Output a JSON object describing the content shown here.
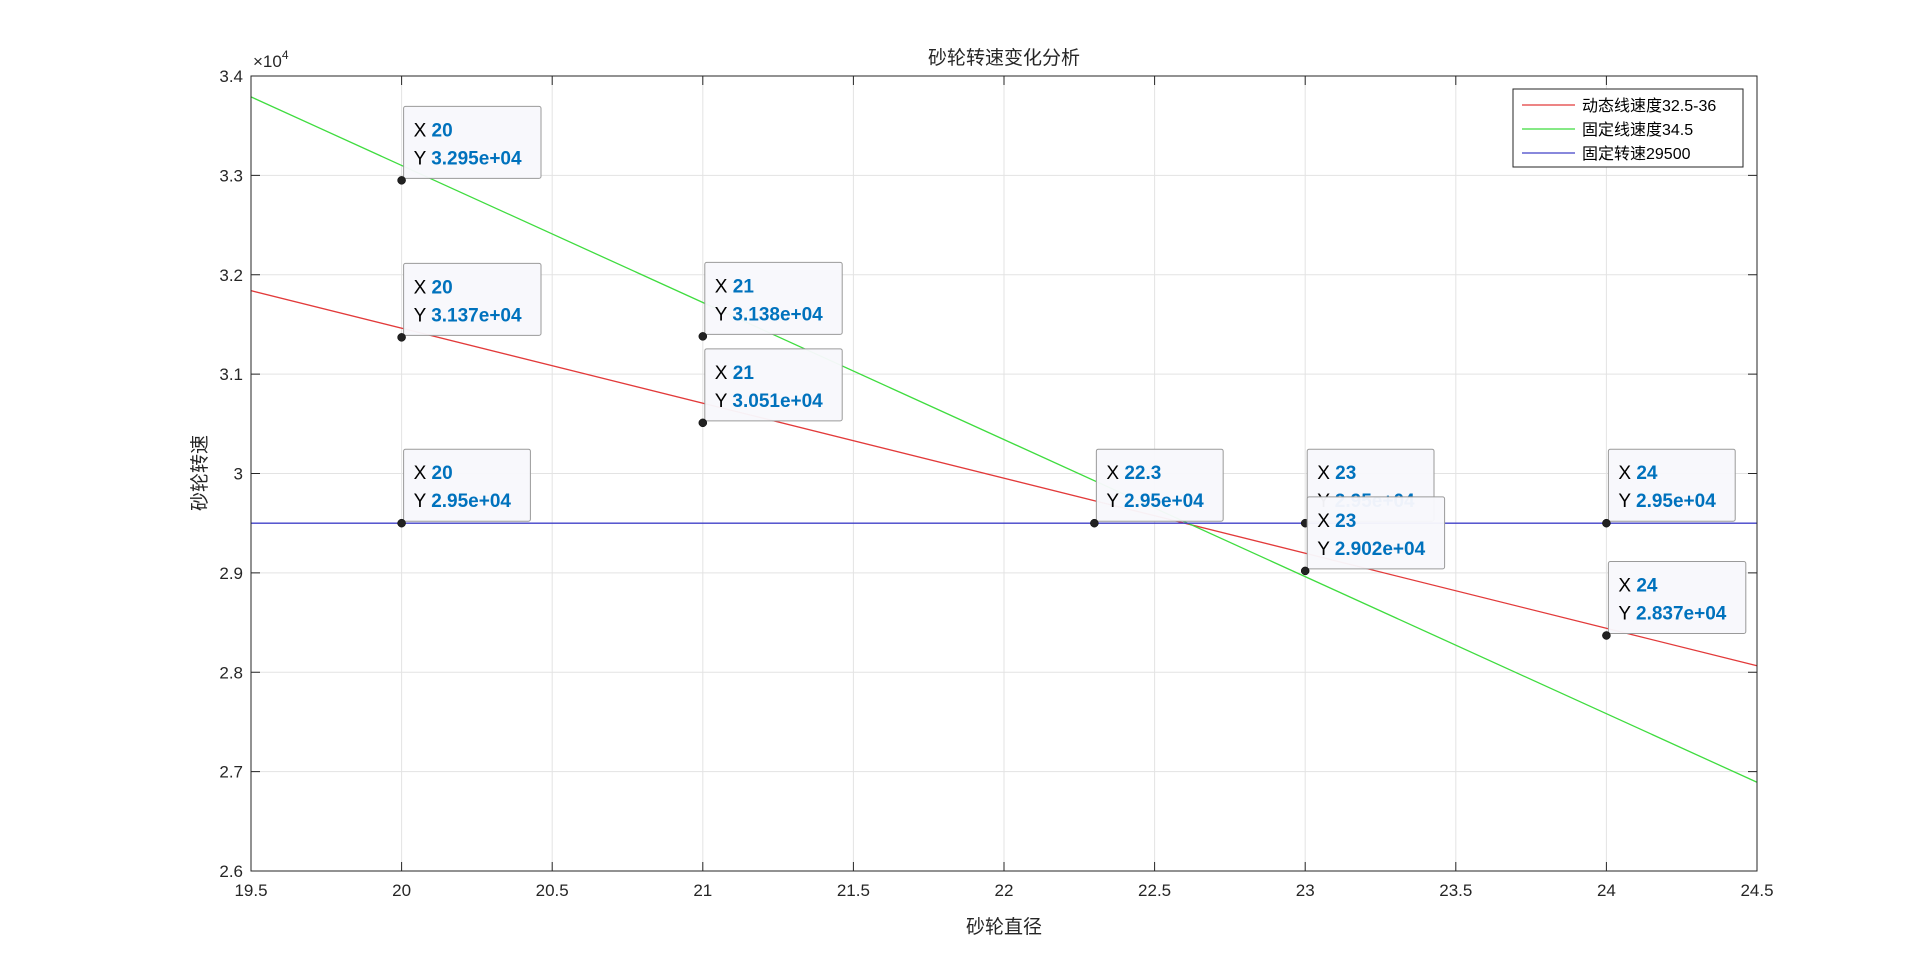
{
  "chart_data": {
    "type": "line",
    "title": "砂轮转速变化分析",
    "xlabel": "砂轮直径",
    "ylabel": "砂轮转速",
    "exponent_label": "×10",
    "exponent_power": "4",
    "xlim": [
      19.5,
      24.5
    ],
    "ylim": [
      26000,
      34000
    ],
    "xticks": [
      "19.5",
      "20",
      "20.5",
      "21",
      "21.5",
      "22",
      "22.5",
      "23",
      "23.5",
      "24",
      "24.5"
    ],
    "xtick_values": [
      19.5,
      20,
      20.5,
      21,
      21.5,
      22,
      22.5,
      23,
      23.5,
      24,
      24.5
    ],
    "yticks": [
      "2.6",
      "2.7",
      "2.8",
      "2.9",
      "3",
      "3.1",
      "3.2",
      "3.3",
      "3.4"
    ],
    "ytick_values": [
      26000,
      27000,
      28000,
      29000,
      30000,
      31000,
      32000,
      33000,
      34000
    ],
    "grid": true,
    "legend_position": "top-right",
    "series": [
      {
        "name": "动态线速度32.5-36",
        "color": "#e23a3a",
        "x": [
          19.5,
          24.5
        ],
        "y": [
          31840,
          28065
        ]
      },
      {
        "name": "固定线速度34.5",
        "color": "#3fdc3f",
        "x": [
          19.5,
          24.5
        ],
        "y": [
          33790,
          26893
        ]
      },
      {
        "name": "固定转速29500",
        "color": "#4040c8",
        "x": [
          19.5,
          24.5
        ],
        "y": [
          29500,
          29500
        ]
      }
    ],
    "datatips": [
      {
        "x": 20,
        "y": 32950,
        "x_label": "20",
        "y_label": "3.295e+04"
      },
      {
        "x": 20,
        "y": 31370,
        "x_label": "20",
        "y_label": "3.137e+04"
      },
      {
        "x": 20,
        "y": 29500,
        "x_label": "20",
        "y_label": "2.95e+04"
      },
      {
        "x": 21,
        "y": 31380,
        "x_label": "21",
        "y_label": "3.138e+04"
      },
      {
        "x": 21,
        "y": 30510,
        "x_label": "21",
        "y_label": "3.051e+04"
      },
      {
        "x": 22.3,
        "y": 29500,
        "x_label": "22.3",
        "y_label": "2.95e+04"
      },
      {
        "x": 23,
        "y": 29500,
        "x_label": "23",
        "y_label": "2.95e+04"
      },
      {
        "x": 23,
        "y": 29020,
        "x_label": "23",
        "y_label": "2.902e+04"
      },
      {
        "x": 24,
        "y": 29500,
        "x_label": "24",
        "y_label": "2.95e+04"
      },
      {
        "x": 24,
        "y": 28370,
        "x_label": "24",
        "y_label": "2.837e+04"
      }
    ],
    "datatip_x_prefix": "X",
    "datatip_y_prefix": "Y"
  }
}
